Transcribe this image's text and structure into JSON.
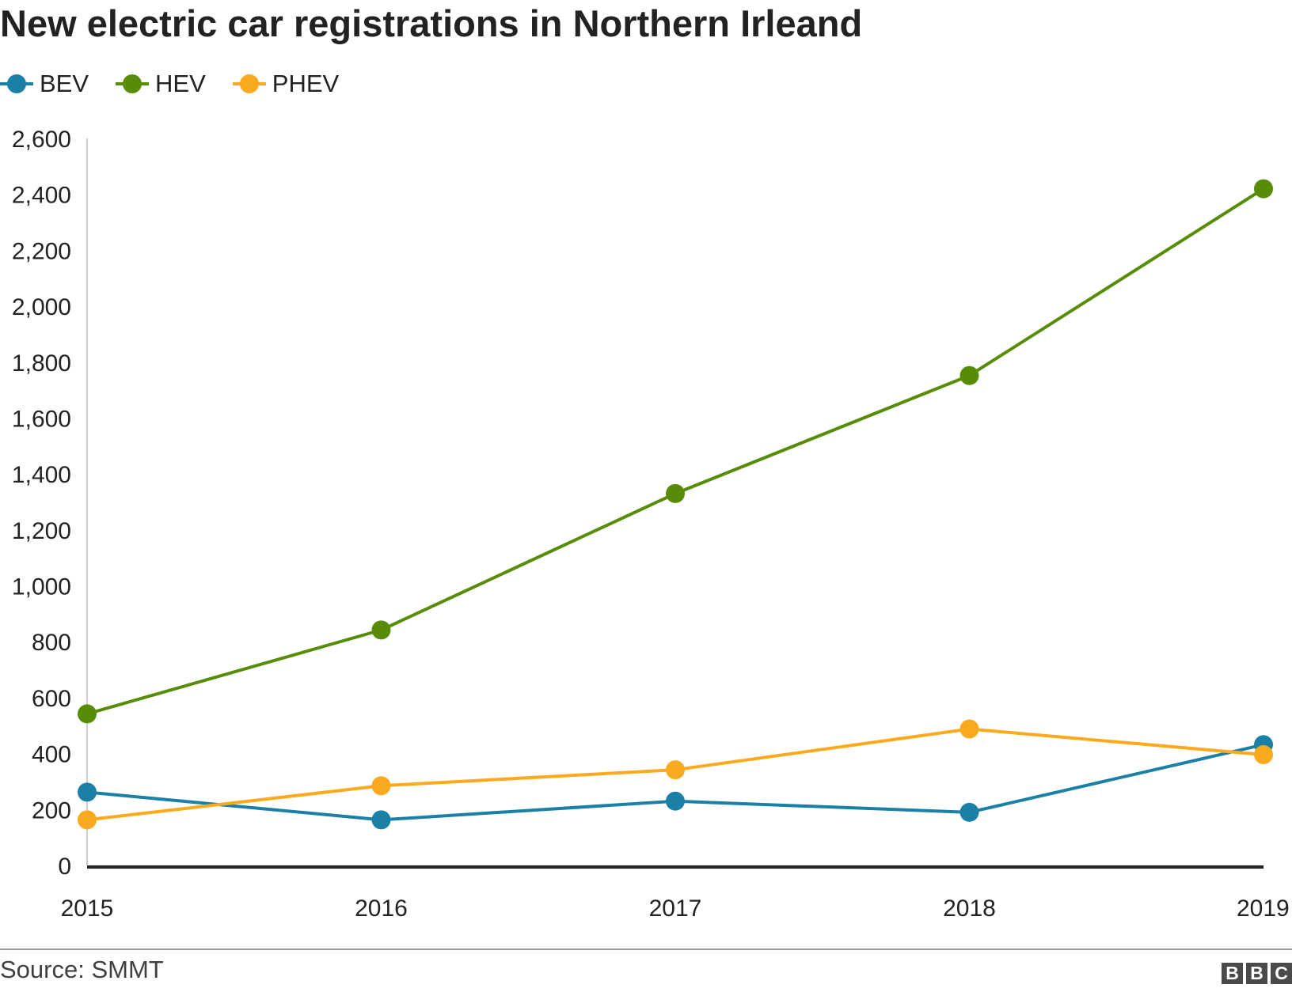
{
  "title": "New electric car registrations in Northern Irleand",
  "source": "Source: SMMT",
  "logo": {
    "text": "BBC",
    "letters": [
      "B",
      "B",
      "C"
    ]
  },
  "colors": {
    "BEV": "#1a80a6",
    "HEV": "#588c07",
    "PHEV": "#fbaa1f",
    "axis": "#222222",
    "gridline": "#cccccc"
  },
  "legend": [
    {
      "name": "BEV",
      "color": "#1a80a6"
    },
    {
      "name": "HEV",
      "color": "#588c07"
    },
    {
      "name": "PHEV",
      "color": "#fbaa1f"
    }
  ],
  "chart_data": {
    "type": "line",
    "title": "New electric car registrations in Northern Irleand",
    "xlabel": "",
    "ylabel": "",
    "x": [
      "2015",
      "2016",
      "2017",
      "2018",
      "2019"
    ],
    "ylim": [
      0,
      2600
    ],
    "yticks": [
      "0",
      "200",
      "400",
      "600",
      "800",
      "1,000",
      "1,200",
      "1,400",
      "1,600",
      "1,800",
      "2,000",
      "2,200",
      "2,400",
      "2,600"
    ],
    "ytick_values": [
      0,
      200,
      400,
      600,
      800,
      1000,
      1200,
      1400,
      1600,
      1800,
      2000,
      2200,
      2400,
      2600
    ],
    "grid": false,
    "legend_position": "top-left",
    "series": [
      {
        "name": "BEV",
        "color": "#1a80a6",
        "values": [
          262,
          163,
          230,
          190,
          432
        ]
      },
      {
        "name": "HEV",
        "color": "#588c07",
        "values": [
          542,
          842,
          1330,
          1752,
          2420
        ]
      },
      {
        "name": "PHEV",
        "color": "#fbaa1f",
        "values": [
          163,
          285,
          342,
          488,
          396
        ]
      }
    ]
  }
}
